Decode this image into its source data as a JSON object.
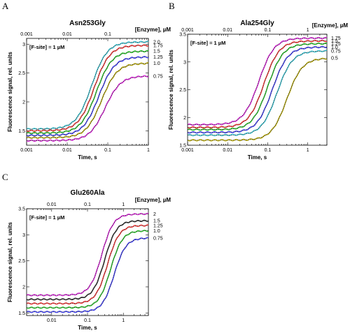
{
  "chart_data": [
    {
      "panel": "A",
      "type": "line",
      "title": "Asn253Gly",
      "xlabel": "Time, s",
      "x2label": "[Enzyme], µM",
      "ylabel": "Fluorescence signal, rel. units",
      "annotation": "[F-site] = 1 µM",
      "x_scale": "log",
      "xlim": [
        0.001,
        1
      ],
      "ylim": [
        1.25,
        3.1
      ],
      "x_ticks": [
        0.001,
        0.01,
        0.1,
        1
      ],
      "x_tick_labels": [
        "0.001",
        "0.01",
        "0.1",
        "1"
      ],
      "x2_ticks": [
        0.001,
        0.01,
        0.1
      ],
      "x2_tick_labels": [
        "0.001",
        "0.01",
        "0.1"
      ],
      "y_ticks": [
        1.5,
        2,
        2.5,
        3
      ],
      "y_tick_labels": [
        "1.5",
        "2",
        "2.5",
        "3"
      ],
      "series": [
        {
          "name": "2.0",
          "start": 1.53,
          "end": 3.04,
          "midpoint": 0.04,
          "width": 0.42,
          "color": "#36c8d8"
        },
        {
          "name": "1.75",
          "start": 1.5,
          "end": 2.98,
          "midpoint": 0.046,
          "width": 0.42,
          "color": "#ff3030"
        },
        {
          "name": "1.5",
          "start": 1.46,
          "end": 2.88,
          "midpoint": 0.052,
          "width": 0.42,
          "color": "#22c822"
        },
        {
          "name": "1.25",
          "start": 1.42,
          "end": 2.78,
          "midpoint": 0.06,
          "width": 0.42,
          "color": "#3b3bff"
        },
        {
          "name": "1.0",
          "start": 1.38,
          "end": 2.67,
          "midpoint": 0.07,
          "width": 0.42,
          "color": "#b8a800"
        },
        {
          "name": "0.75",
          "start": 1.33,
          "end": 2.45,
          "midpoint": 0.085,
          "width": 0.42,
          "color": "#e020e0"
        }
      ]
    },
    {
      "panel": "B",
      "type": "line",
      "title": "Ala254Gly",
      "xlabel": "Time, s",
      "x2label": "[Enzyme], µM",
      "ylabel": "Fluorescence signal, rel. units",
      "annotation": "[F-site] = 1 µM",
      "x_scale": "log",
      "xlim": [
        0.001,
        3
      ],
      "ylim": [
        1.5,
        3.5
      ],
      "x_ticks": [
        0.001,
        0.01,
        0.1,
        1
      ],
      "x_tick_labels": [
        "0.001",
        "0.01",
        "0.1",
        "1"
      ],
      "x2_ticks": [
        0.001,
        0.01,
        0.1,
        1
      ],
      "x2_tick_labels": [
        "0.001",
        "0.01",
        "0.1",
        "1"
      ],
      "y_ticks": [
        1.5,
        2,
        2.5,
        3,
        3.5
      ],
      "y_tick_labels": [
        "1.5",
        "2",
        "2.5",
        "3",
        "3.5"
      ],
      "series": [
        {
          "name": "1.75",
          "start": 1.87,
          "end": 3.43,
          "midpoint": 0.06,
          "width": 0.42,
          "color": "#e020e0"
        },
        {
          "name": "1.5",
          "start": 1.82,
          "end": 3.38,
          "midpoint": 0.08,
          "width": 0.42,
          "color": "#ff3030"
        },
        {
          "name": "1.25",
          "start": 1.78,
          "end": 3.33,
          "midpoint": 0.1,
          "width": 0.42,
          "color": "#22c822"
        },
        {
          "name": "1.0",
          "start": 1.73,
          "end": 3.27,
          "midpoint": 0.13,
          "width": 0.42,
          "color": "#3b3bff"
        },
        {
          "name": "0.75",
          "start": 1.68,
          "end": 3.2,
          "midpoint": 0.17,
          "width": 0.42,
          "color": "#36c8d8"
        },
        {
          "name": "0.5",
          "start": 1.59,
          "end": 3.07,
          "midpoint": 0.3,
          "width": 0.42,
          "color": "#b8a800"
        }
      ]
    },
    {
      "panel": "C",
      "type": "line",
      "title": "Glu260Ala",
      "xlabel": "Time, s",
      "x2label": "[Enzyme], µM",
      "ylabel": "Fluorescence signal, rel. units",
      "annotation": "[F-site] = 1 µM",
      "x_scale": "log",
      "xlim": [
        0.002,
        5
      ],
      "ylim": [
        1.45,
        3.5
      ],
      "x_ticks": [
        0.01,
        0.1,
        1
      ],
      "x_tick_labels": [
        "0.01",
        "0.1",
        "1"
      ],
      "x2_ticks": [
        0.01,
        0.1,
        1
      ],
      "x2_tick_labels": [
        "0.01",
        "0.1",
        "1"
      ],
      "y_ticks": [
        1.5,
        2,
        2.5,
        3,
        3.5
      ],
      "y_tick_labels": [
        "1.5",
        "2",
        "2.5",
        "3",
        "3.5"
      ],
      "series": [
        {
          "name": "2",
          "start": 1.84,
          "end": 3.4,
          "midpoint": 0.25,
          "width": 0.36,
          "color": "#e020e0"
        },
        {
          "name": "1.5",
          "start": 1.76,
          "end": 3.27,
          "midpoint": 0.3,
          "width": 0.36,
          "color": "#222222"
        },
        {
          "name": "1.25",
          "start": 1.68,
          "end": 3.18,
          "midpoint": 0.36,
          "width": 0.36,
          "color": "#ff3030"
        },
        {
          "name": "1.0",
          "start": 1.6,
          "end": 3.08,
          "midpoint": 0.44,
          "width": 0.36,
          "color": "#22c822"
        },
        {
          "name": "0.75",
          "start": 1.52,
          "end": 2.94,
          "midpoint": 0.55,
          "width": 0.36,
          "color": "#3b3bff"
        }
      ]
    }
  ]
}
